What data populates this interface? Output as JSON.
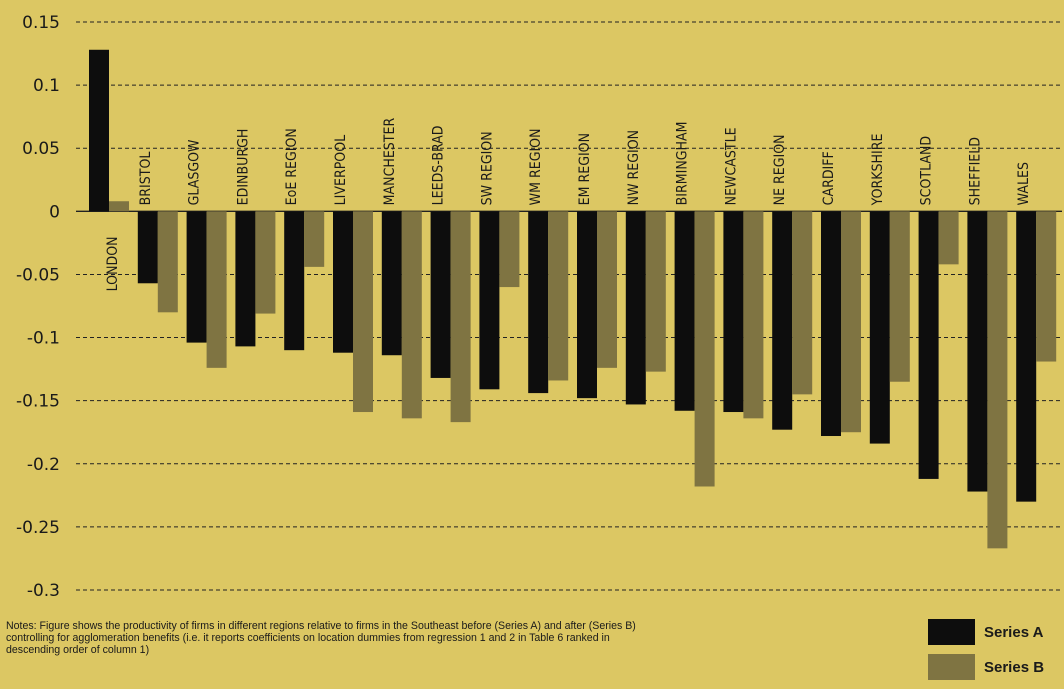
{
  "chart_data": {
    "type": "bar",
    "categories": [
      "LONDON",
      "BRISTOL",
      "GLASGOW",
      "EDINBURGH",
      "EoE REGION",
      "LIVERPOOL",
      "MANCHESTER",
      "LEEDS-BRAD",
      "SW REGION",
      "WM REGION",
      "EM REGION",
      "NW REGION",
      "BIRMINGHAM",
      "NEWCASTLE",
      "NE REGION",
      "CARDIFF",
      "YORKSHIRE",
      "SCOTLAND",
      "SHEFFIELD",
      "WALES"
    ],
    "series": [
      {
        "name": "Series A",
        "color": "#0d0d0d",
        "values": [
          0.128,
          -0.057,
          -0.104,
          -0.107,
          -0.11,
          -0.112,
          -0.114,
          -0.132,
          -0.141,
          -0.144,
          -0.148,
          -0.153,
          -0.158,
          -0.159,
          -0.173,
          -0.178,
          -0.184,
          -0.212,
          -0.222,
          -0.23
        ]
      },
      {
        "name": "Series B",
        "color": "#7f7442",
        "values": [
          0.008,
          -0.08,
          -0.124,
          -0.081,
          -0.044,
          -0.159,
          -0.164,
          -0.167,
          -0.06,
          -0.134,
          -0.124,
          -0.127,
          -0.218,
          -0.164,
          -0.145,
          -0.175,
          -0.135,
          -0.042,
          -0.267,
          -0.119
        ]
      }
    ],
    "yticks": [
      "0.15",
      "0.1",
      "0.05",
      "0",
      "-0.05",
      "-0.1",
      "-0.15",
      "-0.2",
      "-0.25",
      "-0.3"
    ],
    "ylim": [
      -0.3,
      0.15
    ],
    "grid": true,
    "legend_position": "bottom-right",
    "xlabel": "",
    "ylabel": ""
  },
  "notes": "Notes: Figure shows the productivity of firms in different regions relative to firms in the Southeast before (Series A) and after (Series B) controlling for agglomeration benefits (i.e. it reports coefficients on location dummies from regression 1 and 2 in Table 6 ranked in descending order of column 1)",
  "legend": {
    "series_a": "Series A",
    "series_b": "Series B"
  }
}
